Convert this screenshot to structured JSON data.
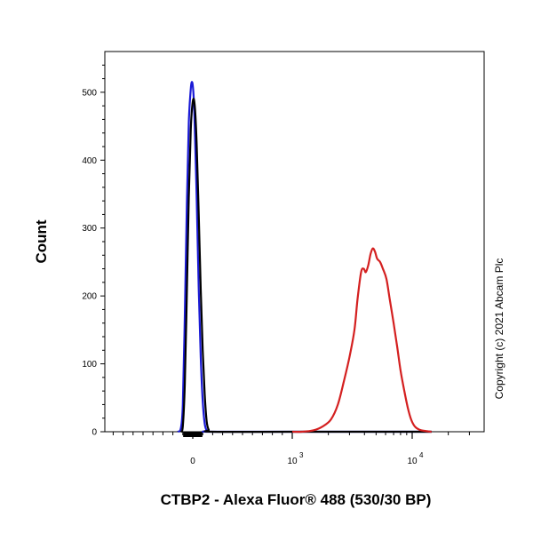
{
  "chart_data": {
    "type": "line",
    "xlabel": "CTBP2 - Alexa Fluor® 488 (530/30 BP)",
    "ylabel": "Count",
    "copyright": "Copyright (c) 2021 Abcam Plc",
    "x_scale": "biexponential",
    "ylim": [
      0,
      560
    ],
    "y_ticks": [
      0,
      100,
      200,
      300,
      400,
      500
    ],
    "x_ticks": [
      {
        "value": 0,
        "label": "0"
      },
      {
        "value": 1000,
        "label": "10",
        "exp": "3"
      },
      {
        "value": 10000,
        "label": "10",
        "exp": "4"
      }
    ],
    "grid": false,
    "series": [
      {
        "color": "#1a1ad6",
        "points": [
          [
            -900,
            0
          ],
          [
            -150,
            0
          ],
          [
            -120,
            5
          ],
          [
            -100,
            40
          ],
          [
            -80,
            170
          ],
          [
            -60,
            330
          ],
          [
            -40,
            455
          ],
          [
            -20,
            505
          ],
          [
            -10,
            515
          ],
          [
            0,
            510
          ],
          [
            10,
            490
          ],
          [
            20,
            450
          ],
          [
            40,
            340
          ],
          [
            60,
            210
          ],
          [
            80,
            110
          ],
          [
            100,
            45
          ],
          [
            120,
            12
          ],
          [
            140,
            2
          ],
          [
            170,
            0
          ],
          [
            1000,
            0
          ],
          [
            14500,
            0
          ],
          [
            40000,
            0
          ]
        ]
      },
      {
        "color": "#000000",
        "points": [
          [
            -900,
            0
          ],
          [
            -120,
            0
          ],
          [
            -100,
            8
          ],
          [
            -80,
            70
          ],
          [
            -60,
            200
          ],
          [
            -40,
            345
          ],
          [
            -20,
            445
          ],
          [
            -5,
            480
          ],
          [
            10,
            490
          ],
          [
            25,
            470
          ],
          [
            40,
            420
          ],
          [
            60,
            320
          ],
          [
            80,
            210
          ],
          [
            100,
            120
          ],
          [
            120,
            55
          ],
          [
            140,
            15
          ],
          [
            160,
            3
          ],
          [
            190,
            0
          ],
          [
            1000,
            0
          ],
          [
            14500,
            0
          ],
          [
            40000,
            0
          ]
        ]
      },
      {
        "color": "#d42020",
        "points": [
          [
            -900,
            0
          ],
          [
            1000,
            0
          ],
          [
            1200,
            0
          ],
          [
            1500,
            2
          ],
          [
            1800,
            8
          ],
          [
            2100,
            18
          ],
          [
            2400,
            40
          ],
          [
            2700,
            75
          ],
          [
            3000,
            110
          ],
          [
            3300,
            150
          ],
          [
            3500,
            195
          ],
          [
            3750,
            235
          ],
          [
            3950,
            240
          ],
          [
            4100,
            235
          ],
          [
            4300,
            245
          ],
          [
            4500,
            262
          ],
          [
            4700,
            270
          ],
          [
            4900,
            265
          ],
          [
            5100,
            255
          ],
          [
            5400,
            250
          ],
          [
            5700,
            240
          ],
          [
            6100,
            225
          ],
          [
            6500,
            195
          ],
          [
            7000,
            160
          ],
          [
            7500,
            125
          ],
          [
            8000,
            90
          ],
          [
            8600,
            60
          ],
          [
            9200,
            35
          ],
          [
            9800,
            18
          ],
          [
            10500,
            8
          ],
          [
            11500,
            3
          ],
          [
            13000,
            1
          ],
          [
            14500,
            0
          ],
          [
            40000,
            0
          ]
        ]
      }
    ]
  }
}
